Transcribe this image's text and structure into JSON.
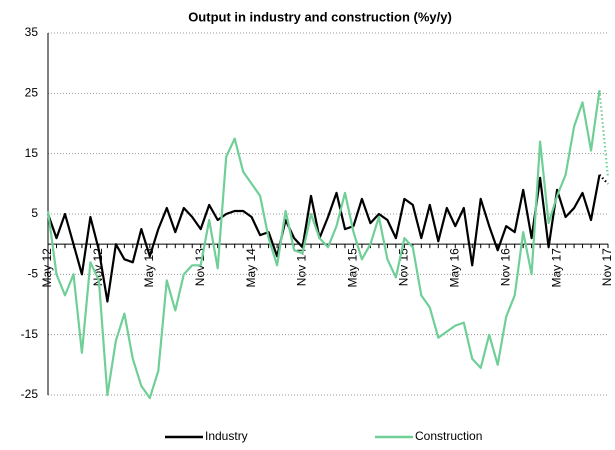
{
  "chart_data": {
    "type": "line",
    "title": "Output in industry and construction (%y/y)",
    "categories": [
      "May 12",
      null,
      null,
      null,
      null,
      null,
      "Nov 12",
      null,
      null,
      null,
      null,
      null,
      "May 13",
      null,
      null,
      null,
      null,
      null,
      "Nov 13",
      null,
      null,
      null,
      null,
      null,
      "May 14",
      null,
      null,
      null,
      null,
      null,
      "Nov 14",
      null,
      null,
      null,
      null,
      null,
      "May 15",
      null,
      null,
      null,
      null,
      null,
      "Nov 15",
      null,
      null,
      null,
      null,
      null,
      "May 16",
      null,
      null,
      null,
      null,
      null,
      "Nov 16",
      null,
      null,
      null,
      null,
      null,
      "May 17",
      null,
      null,
      null,
      null,
      null,
      "Nov 17"
    ],
    "series": [
      {
        "name": "Industry",
        "color": "#000000",
        "values": [
          5,
          1,
          5,
          0,
          -5,
          4.5,
          -1,
          -9.5,
          0,
          -2.5,
          -3,
          2.5,
          -2,
          2.5,
          6,
          2,
          6,
          4.5,
          2.5,
          6.5,
          4,
          5,
          5.5,
          5.5,
          4.5,
          1.5,
          2,
          -2,
          4,
          1,
          -0.5,
          8,
          1,
          4.5,
          8.5,
          2.5,
          3,
          7.5,
          3.5,
          5,
          4,
          1,
          7.5,
          6.5,
          1,
          6.5,
          0.5,
          6,
          3,
          6,
          -3.5,
          7.5,
          3,
          -1,
          3,
          2,
          9,
          1,
          11,
          -0.5,
          9,
          4.5,
          6,
          8.5,
          4,
          11.5,
          10
        ]
      },
      {
        "name": "Construction",
        "color": "#6fcf97",
        "values": [
          5.5,
          -5,
          -8.5,
          -5,
          -18,
          -3,
          -6,
          -25,
          -16,
          -11.5,
          -19,
          -23.5,
          -25.5,
          -21,
          -6,
          -11,
          -5,
          -3.5,
          -3.5,
          4,
          -4,
          14.5,
          17.5,
          12,
          10,
          8,
          1,
          -3.5,
          5.5,
          -1,
          -1.5,
          5,
          1,
          -0.5,
          3,
          8.5,
          2,
          -2.5,
          0,
          4.5,
          -2.5,
          -5.5,
          1,
          -0.5,
          -8.5,
          -10.5,
          -15.5,
          -14.5,
          -13.5,
          -13,
          -19,
          -20.5,
          -15,
          -20,
          -12,
          -8.5,
          2,
          -5,
          17,
          3.5,
          8,
          11.5,
          19.5,
          23.5,
          15.5,
          25.5,
          11
        ]
      }
    ],
    "projected_from": 65,
    "ylim": [
      -25,
      35
    ],
    "yticks": [
      -25,
      -15,
      -5,
      5,
      15,
      25,
      35
    ],
    "grid": true,
    "legend": "bottom"
  }
}
